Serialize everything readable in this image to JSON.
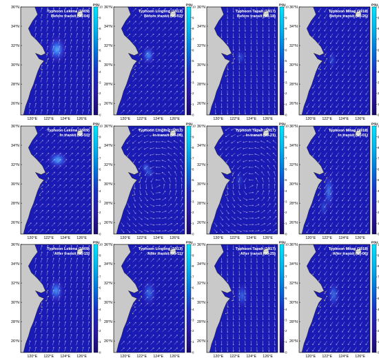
{
  "lat_labels": [
    "36°N",
    "34°N",
    "32°N",
    "30°N",
    "28°N",
    "26°N"
  ],
  "lon_labels": [
    "120°E",
    "122°E",
    "124°E",
    "126°E"
  ],
  "colorbar": {
    "unit": "PSU",
    "ticks": [
      "10",
      "9",
      "8",
      "7",
      "6",
      "5",
      "4",
      "3",
      "2",
      "1",
      "0"
    ],
    "colors": [
      "#00e5ff",
      "#00b7f0",
      "#0077e0",
      "#1a30c8",
      "#2a1aa8",
      "#1a0a70"
    ]
  },
  "colors": {
    "ocean": "#1a1ab4",
    "land": "#c9c9c9",
    "coast": "#2a2a2a",
    "arrow": "#d8d8f0",
    "plume_core": "#7fd8ff",
    "plume_mid": "#2e7cff",
    "plume_edge": "#4a2ec8"
  },
  "panels": [
    {
      "row": 0,
      "col": 0,
      "title": "Typhoon Lekima (1909)",
      "subtitle": "Before transit (08-04)",
      "flow": "north",
      "plumes": [
        {
          "lon": 123.0,
          "lat": 31.6,
          "rx_deg": 1.1,
          "ry_deg": 1.4,
          "intensity": 0.95
        }
      ]
    },
    {
      "row": 0,
      "col": 1,
      "title": "Typhoon Lingling (1913)",
      "subtitle": "Before transit (09-02)",
      "flow": "northeast",
      "plumes": [
        {
          "lon": 122.8,
          "lat": 31.0,
          "rx_deg": 0.7,
          "ry_deg": 1.0,
          "intensity": 0.85
        }
      ]
    },
    {
      "row": 0,
      "col": 2,
      "title": "Typhoon Tapah (1917)",
      "subtitle": "Before transit (09-18)",
      "flow": "south",
      "plumes": [
        {
          "lon": 122.7,
          "lat": 30.8,
          "rx_deg": 0.5,
          "ry_deg": 0.8,
          "intensity": 0.45
        }
      ]
    },
    {
      "row": 0,
      "col": 3,
      "title": "Typhoon Mitag (1918)",
      "subtitle": "Before transit (09-26)",
      "flow": "southwest",
      "plumes": [
        {
          "lon": 122.6,
          "lat": 30.5,
          "rx_deg": 0.3,
          "ry_deg": 1.0,
          "intensity": 0.55
        }
      ]
    },
    {
      "row": 1,
      "col": 0,
      "title": "Typhoon Lekima (1909)",
      "subtitle": "In transit (08-10)",
      "flow": "northeast",
      "plumes": [
        {
          "lon": 123.1,
          "lat": 32.5,
          "rx_deg": 1.3,
          "ry_deg": 0.9,
          "intensity": 0.9
        }
      ]
    },
    {
      "row": 1,
      "col": 1,
      "title": "Typhoon Lingling (1913)",
      "subtitle": "In transit (09-06)",
      "flow": "cyclone",
      "plumes": [
        {
          "lon": 122.5,
          "lat": 31.7,
          "rx_deg": 0.4,
          "ry_deg": 0.5,
          "intensity": 1.0
        },
        {
          "lon": 122.9,
          "lat": 31.2,
          "rx_deg": 0.6,
          "ry_deg": 0.7,
          "intensity": 0.5
        }
      ]
    },
    {
      "row": 1,
      "col": 2,
      "title": "Typhoon Tapah (1917)",
      "subtitle": "In transit (09-21)",
      "flow": "cyclone",
      "plumes": [
        {
          "lon": 122.6,
          "lat": 30.4,
          "rx_deg": 0.4,
          "ry_deg": 0.9,
          "intensity": 0.35
        }
      ]
    },
    {
      "row": 1,
      "col": 3,
      "title": "Typhoon Mitag (1918)",
      "subtitle": "In transit (10-01)",
      "flow": "southwest",
      "plumes": [
        {
          "lon": 122.2,
          "lat": 29.2,
          "rx_deg": 0.5,
          "ry_deg": 2.2,
          "intensity": 0.75
        },
        {
          "lon": 121.6,
          "lat": 27.6,
          "rx_deg": 0.4,
          "ry_deg": 1.2,
          "intensity": 0.5
        }
      ]
    },
    {
      "row": 2,
      "col": 0,
      "title": "Typhoon Lekima (1909)",
      "subtitle": "After transit (08-15)",
      "flow": "north",
      "plumes": [
        {
          "lon": 122.9,
          "lat": 31.2,
          "rx_deg": 0.9,
          "ry_deg": 1.3,
          "intensity": 0.8
        }
      ]
    },
    {
      "row": 2,
      "col": 1,
      "title": "Typhoon Lingling (1913)",
      "subtitle": "After transit (09-11)",
      "flow": "northeast",
      "plumes": [
        {
          "lon": 122.9,
          "lat": 31.0,
          "rx_deg": 0.9,
          "ry_deg": 1.5,
          "intensity": 0.55
        }
      ]
    },
    {
      "row": 2,
      "col": 2,
      "title": "Typhoon Tapah (1917)",
      "subtitle": "After transit (09-25)",
      "flow": "south",
      "plumes": [
        {
          "lon": 122.9,
          "lat": 30.7,
          "rx_deg": 0.7,
          "ry_deg": 1.4,
          "intensity": 0.55
        }
      ]
    },
    {
      "row": 2,
      "col": 3,
      "title": "Typhoon Mitag (1918)",
      "subtitle": "After transit (10-06)",
      "flow": "southwest",
      "plumes": [
        {
          "lon": 122.8,
          "lat": 30.8,
          "rx_deg": 0.7,
          "ry_deg": 1.5,
          "intensity": 0.6
        }
      ]
    }
  ]
}
